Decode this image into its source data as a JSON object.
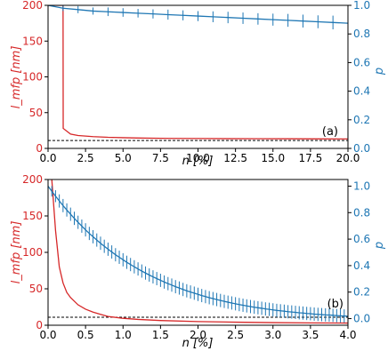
{
  "chart_data": [
    {
      "type": "line",
      "panel_label": "(a)",
      "xlabel": "n [%]",
      "ylabel_left": "l_mfp [nm]",
      "ylabel_right": "p",
      "xlim": [
        0,
        20
      ],
      "ylim_left": [
        0,
        200
      ],
      "ylim_right": [
        0,
        1.0
      ],
      "x_ticks": [
        0,
        2.5,
        5,
        7.5,
        10,
        12.5,
        15,
        17.5,
        20
      ],
      "x_tick_labels": [
        "0.0",
        "2.5",
        "5.0",
        "7.5",
        "10.0",
        "12.5",
        "15.0",
        "17.5",
        "20.0"
      ],
      "y_left_ticks": [
        0,
        50,
        100,
        150,
        200
      ],
      "y_left_tick_labels": [
        "0",
        "50",
        "100",
        "150",
        "200"
      ],
      "y_right_ticks": [
        0,
        0.2,
        0.4,
        0.6,
        0.8,
        1.0
      ],
      "y_right_tick_labels": [
        "0.0",
        "0.2",
        "0.4",
        "0.6",
        "0.8",
        "1.0"
      ],
      "colors": {
        "left": "#d62728",
        "right": "#1f77b4",
        "reference": "#000000"
      },
      "reference_line": {
        "axis": "left",
        "y": 11
      },
      "series": [
        {
          "axis": "left",
          "color": "#d62728",
          "x": [
            0,
            0.2,
            0.4,
            0.6,
            0.8,
            1.0,
            1.01,
            1.5,
            2,
            3,
            4,
            5,
            6,
            8,
            10,
            12,
            14,
            16,
            18,
            20
          ],
          "y": [
            200,
            200,
            200,
            200,
            200,
            200,
            28,
            20,
            18,
            16.5,
            15.5,
            15,
            14.5,
            14,
            13.8,
            13.6,
            13.5,
            13.4,
            13.3,
            13.2
          ]
        },
        {
          "axis": "right",
          "color": "#1f77b4",
          "x": [
            0,
            1,
            2,
            3,
            4,
            5,
            6,
            7,
            8,
            9,
            10,
            11,
            12,
            13,
            14,
            15,
            16,
            17,
            18,
            19,
            20
          ],
          "y": [
            1.0,
            0.98,
            0.97,
            0.96,
            0.955,
            0.95,
            0.945,
            0.94,
            0.935,
            0.93,
            0.925,
            0.92,
            0.915,
            0.91,
            0.905,
            0.9,
            0.895,
            0.89,
            0.885,
            0.88,
            0.875
          ],
          "err": [
            0,
            0.02,
            0.025,
            0.025,
            0.03,
            0.03,
            0.03,
            0.032,
            0.035,
            0.035,
            0.035,
            0.038,
            0.04,
            0.04,
            0.04,
            0.042,
            0.045,
            0.045,
            0.045,
            0.048,
            0.05
          ]
        }
      ]
    },
    {
      "type": "line",
      "panel_label": "(b)",
      "xlabel": "n [%]",
      "ylabel_left": "l_mfp [nm]",
      "ylabel_right": "p",
      "xlim": [
        0,
        4
      ],
      "ylim_left": [
        0,
        200
      ],
      "ylim_right": [
        -0.05,
        1.05
      ],
      "x_ticks": [
        0,
        0.5,
        1,
        1.5,
        2,
        2.5,
        3,
        3.5,
        4
      ],
      "x_tick_labels": [
        "0.0",
        "0.5",
        "1.0",
        "1.5",
        "2.0",
        "2.5",
        "3.0",
        "3.5",
        "4.0"
      ],
      "y_left_ticks": [
        0,
        50,
        100,
        150,
        200
      ],
      "y_left_tick_labels": [
        "0",
        "50",
        "100",
        "150",
        "200"
      ],
      "y_right_ticks": [
        0,
        0.2,
        0.4,
        0.6,
        0.8,
        1.0
      ],
      "y_right_tick_labels": [
        "0.0",
        "0.2",
        "0.4",
        "0.6",
        "0.8",
        "1.0"
      ],
      "colors": {
        "left": "#d62728",
        "right": "#1f77b4",
        "reference": "#000000"
      },
      "reference_line": {
        "axis": "left",
        "y": 11
      },
      "series": [
        {
          "axis": "left",
          "color": "#d62728",
          "x": [
            0.05,
            0.1,
            0.15,
            0.2,
            0.25,
            0.3,
            0.4,
            0.5,
            0.6,
            0.7,
            0.8,
            1.0,
            1.2,
            1.5,
            2.0,
            2.5,
            3.0,
            3.5,
            4.0
          ],
          "y": [
            200,
            130,
            80,
            58,
            45,
            38,
            28,
            22,
            18,
            15,
            12,
            9.5,
            8,
            6.5,
            5,
            4.2,
            3.6,
            3.2,
            3.0
          ]
        },
        {
          "axis": "right",
          "color": "#1f77b4",
          "x": [
            0.0,
            0.05,
            0.1,
            0.15,
            0.2,
            0.25,
            0.3,
            0.35,
            0.4,
            0.45,
            0.5,
            0.55,
            0.6,
            0.65,
            0.7,
            0.75,
            0.8,
            0.85,
            0.9,
            0.95,
            1.0,
            1.05,
            1.1,
            1.15,
            1.2,
            1.25,
            1.3,
            1.35,
            1.4,
            1.45,
            1.5,
            1.55,
            1.6,
            1.65,
            1.7,
            1.75,
            1.8,
            1.85,
            1.9,
            1.95,
            2.0,
            2.05,
            2.1,
            2.15,
            2.2,
            2.25,
            2.3,
            2.35,
            2.4,
            2.45,
            2.5,
            2.55,
            2.6,
            2.65,
            2.7,
            2.75,
            2.8,
            2.85,
            2.9,
            2.95,
            3.0,
            3.05,
            3.1,
            3.15,
            3.2,
            3.25,
            3.3,
            3.35,
            3.4,
            3.45,
            3.5,
            3.55,
            3.6,
            3.65,
            3.7,
            3.75,
            3.8,
            3.85,
            3.9,
            3.95,
            4.0
          ],
          "y": [
            1.0,
            0.961,
            0.924,
            0.888,
            0.853,
            0.82,
            0.788,
            0.757,
            0.727,
            0.698,
            0.67,
            0.643,
            0.618,
            0.593,
            0.569,
            0.546,
            0.524,
            0.503,
            0.482,
            0.463,
            0.444,
            0.425,
            0.408,
            0.391,
            0.375,
            0.359,
            0.344,
            0.329,
            0.315,
            0.302,
            0.289,
            0.276,
            0.264,
            0.253,
            0.241,
            0.231,
            0.22,
            0.21,
            0.201,
            0.192,
            0.183,
            0.174,
            0.166,
            0.158,
            0.151,
            0.144,
            0.137,
            0.13,
            0.124,
            0.118,
            0.112,
            0.106,
            0.101,
            0.096,
            0.091,
            0.086,
            0.082,
            0.078,
            0.073,
            0.07,
            0.066,
            0.062,
            0.059,
            0.056,
            0.052,
            0.05,
            0.047,
            0.044,
            0.042,
            0.039,
            0.037,
            0.034,
            0.032,
            0.03,
            0.028,
            0.027,
            0.025,
            0.023,
            0.021,
            0.02,
            0.018
          ],
          "err": [
            0,
            0.04,
            0.045,
            0.05,
            0.05,
            0.05,
            0.05,
            0.05,
            0.05,
            0.05,
            0.05,
            0.05,
            0.05,
            0.05,
            0.05,
            0.05,
            0.05,
            0.05,
            0.05,
            0.05,
            0.05,
            0.05,
            0.05,
            0.05,
            0.05,
            0.05,
            0.05,
            0.05,
            0.05,
            0.05,
            0.05,
            0.05,
            0.05,
            0.05,
            0.05,
            0.05,
            0.05,
            0.05,
            0.05,
            0.05,
            0.05,
            0.05,
            0.05,
            0.05,
            0.05,
            0.05,
            0.05,
            0.05,
            0.05,
            0.05,
            0.05,
            0.05,
            0.05,
            0.05,
            0.05,
            0.05,
            0.05,
            0.05,
            0.05,
            0.05,
            0.05,
            0.05,
            0.05,
            0.05,
            0.05,
            0.05,
            0.05,
            0.05,
            0.05,
            0.05,
            0.05,
            0.05,
            0.05,
            0.05,
            0.05,
            0.05,
            0.05,
            0.05,
            0.05,
            0.05,
            0.05
          ]
        }
      ]
    }
  ]
}
